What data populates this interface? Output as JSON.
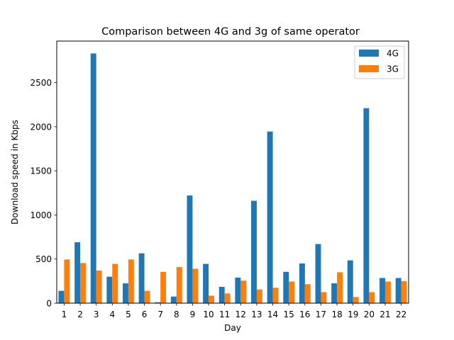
{
  "chart_data": {
    "type": "bar",
    "title": "Comparison between 4G and 3g of same operator",
    "xlabel": "Day",
    "ylabel": "Download speed in Kbps",
    "categories": [
      "1",
      "2",
      "3",
      "4",
      "5",
      "6",
      "7",
      "8",
      "9",
      "10",
      "11",
      "12",
      "13",
      "14",
      "15",
      "16",
      "17",
      "18",
      "19",
      "20",
      "21",
      "22"
    ],
    "series": [
      {
        "name": "4G",
        "color": "#1f77b4",
        "values": [
          140,
          690,
          2830,
          300,
          225,
          565,
          10,
          75,
          1220,
          445,
          185,
          290,
          1160,
          1945,
          355,
          450,
          670,
          225,
          485,
          2210,
          285,
          285
        ]
      },
      {
        "name": "3G",
        "color": "#ff7f0e",
        "values": [
          495,
          455,
          370,
          445,
          495,
          140,
          355,
          410,
          390,
          85,
          110,
          255,
          155,
          175,
          245,
          215,
          125,
          350,
          70,
          125,
          245,
          250
        ]
      }
    ],
    "yticks": [
      0,
      500,
      1000,
      1500,
      2000,
      2500
    ],
    "ylim": [
      0,
      2970
    ],
    "legend_position": "top-right",
    "grid": false
  }
}
